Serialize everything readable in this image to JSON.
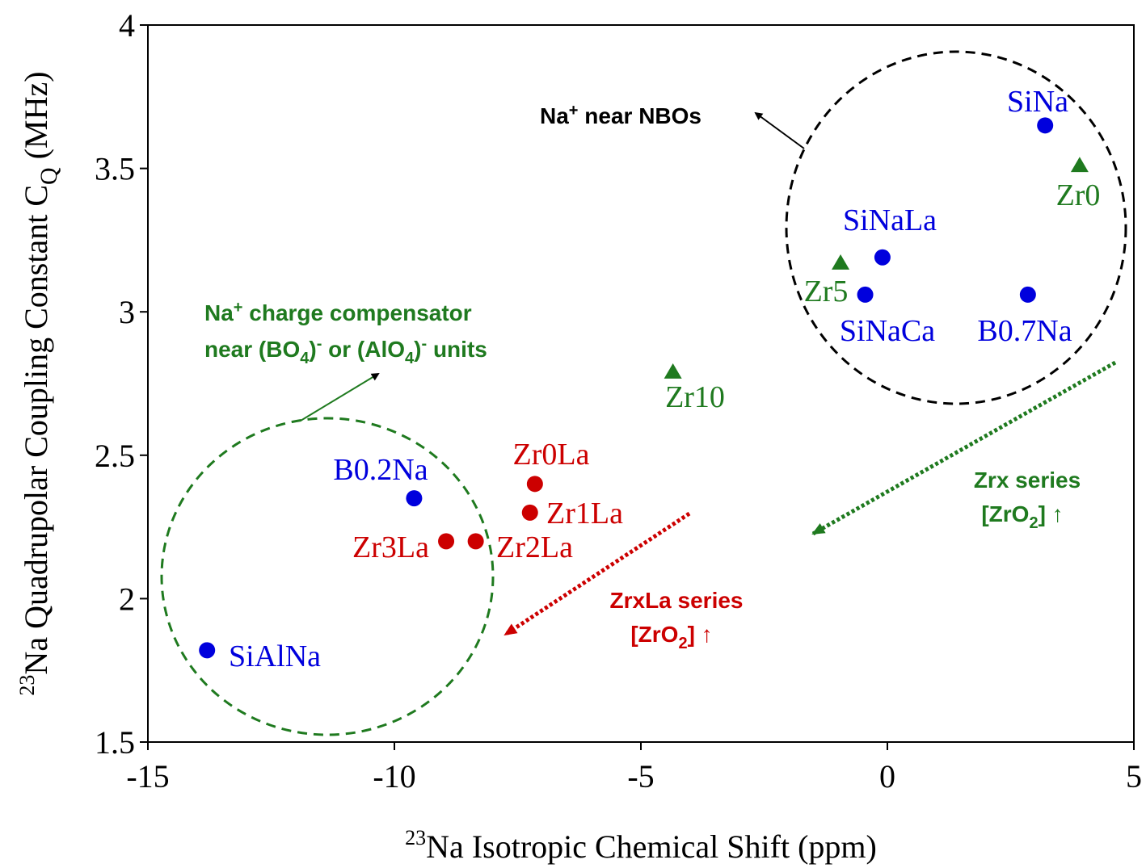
{
  "chart_data": {
    "type": "scatter",
    "xlabel": {
      "sup": "23",
      "text": "Na Isotropic Chemical Shift (ppm)"
    },
    "ylabel": {
      "sup": "23",
      "text": "Na Quadrupolar Coupling Constant C",
      "sub": "Q",
      "unit": " (MHz)"
    },
    "xlim": [
      -15,
      5
    ],
    "ylim": [
      1.5,
      4
    ],
    "xticks": [
      -15,
      -10,
      -5,
      0,
      5
    ],
    "yticks": [
      1.5,
      2,
      2.5,
      3,
      3.5,
      4
    ],
    "xtick_labels": [
      "-15",
      "-10",
      "-5",
      "0",
      "5"
    ],
    "ytick_labels": [
      "1.5",
      "2",
      "2.5",
      "3",
      "3.5",
      "4"
    ],
    "grid": false,
    "series": [
      {
        "marker": "circle",
        "color": "#0000dd",
        "points": [
          {
            "label": "SiNa",
            "x": 3.2,
            "y": 3.65
          },
          {
            "label": "SiNaLa",
            "x": -0.1,
            "y": 3.19
          },
          {
            "label": "SiNaCa",
            "x": -0.45,
            "y": 3.06
          },
          {
            "label": "B0.7Na",
            "x": 2.85,
            "y": 3.06
          },
          {
            "label": "B0.2Na",
            "x": -9.6,
            "y": 2.35
          },
          {
            "label": "SiAlNa",
            "x": -13.8,
            "y": 1.82
          }
        ]
      },
      {
        "marker": "triangle",
        "color": "#1f7a1f",
        "points": [
          {
            "label": "Zr0",
            "x": 3.9,
            "y": 3.51
          },
          {
            "label": "Zr5",
            "x": -0.95,
            "y": 3.17
          },
          {
            "label": "Zr10",
            "x": -4.35,
            "y": 2.79
          }
        ]
      },
      {
        "marker": "circle",
        "color": "#cc0000",
        "points": [
          {
            "label": "Zr0La",
            "x": -7.15,
            "y": 2.4
          },
          {
            "label": "Zr1La",
            "x": -7.25,
            "y": 2.3
          },
          {
            "label": "Zr2La",
            "x": -8.35,
            "y": 2.2
          },
          {
            "label": "Zr3La",
            "x": -8.95,
            "y": 2.2
          }
        ]
      }
    ],
    "annotations": {
      "nbo": {
        "pre": "Na",
        "sup": "+",
        "post": " near NBOs",
        "color": "#000000"
      },
      "charge_line1": {
        "pre": "Na",
        "sup": "+",
        "post": " charge compensator",
        "color": "#1f7a1f"
      },
      "charge_line2": {
        "t1": "near (BO",
        "s1": "4",
        "t2": ")",
        "p1": "-",
        "t3": " or (AlO",
        "s2": "4",
        "t4": ")",
        "p2": "-",
        "t5": " units",
        "color": "#1f7a1f"
      },
      "zrx_series": {
        "line1": "Zrx series",
        "pre": "[ZrO",
        "sub": "2",
        "post": "] ↑",
        "color": "#1f7a1f"
      },
      "zrxla_series": {
        "line1": "ZrxLa series",
        "pre": "[ZrO",
        "sub": "2",
        "post": "] ↑",
        "color": "#cc0000"
      }
    }
  }
}
